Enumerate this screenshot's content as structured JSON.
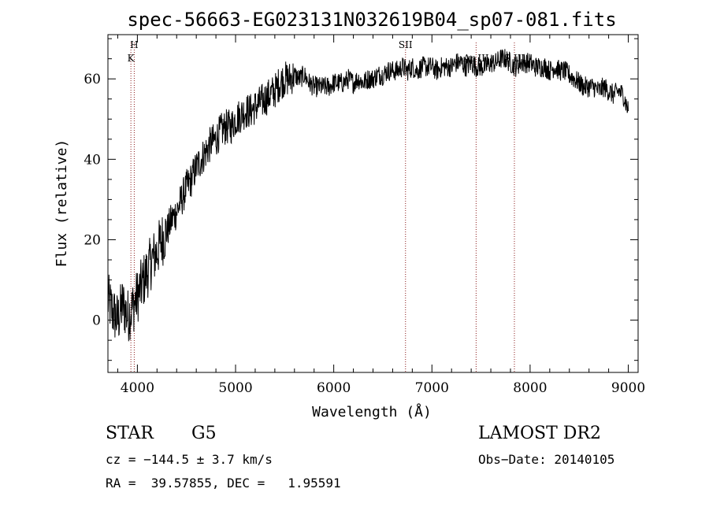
{
  "chart_data": {
    "type": "line",
    "title": "spec-56663-EG023131N032619B04_sp07-081.fits",
    "xlabel": "Wavelength (Å)",
    "ylabel": "Flux (relative)",
    "xlim": [
      3700,
      9100
    ],
    "ylim": [
      -13,
      71
    ],
    "xticks": [
      4000,
      5000,
      6000,
      7000,
      8000,
      9000
    ],
    "yticks": [
      0,
      20,
      40,
      60
    ],
    "grid": false,
    "series": [
      {
        "x": [
          3700,
          3750,
          3800,
          3850,
          3900,
          3950,
          4000,
          4050,
          4100,
          4150,
          4200,
          4250,
          4300,
          4350,
          4400,
          4450,
          4500,
          4550,
          4600,
          4650,
          4700,
          4750,
          4800,
          4850,
          4900,
          4950,
          5000,
          5050,
          5100,
          5150,
          5200,
          5250,
          5300,
          5350,
          5400,
          5450,
          5500,
          5550,
          5600,
          5650,
          5700,
          5750,
          5800,
          5850,
          5900,
          5950,
          6000,
          6050,
          6100,
          6150,
          6200,
          6250,
          6300,
          6350,
          6400,
          6450,
          6500,
          6550,
          6600,
          6650,
          6700,
          6750,
          6800,
          6850,
          6900,
          6950,
          7000,
          7050,
          7100,
          7150,
          7200,
          7250,
          7300,
          7350,
          7400,
          7450,
          7500,
          7550,
          7600,
          7650,
          7700,
          7750,
          7800,
          7850,
          7900,
          7950,
          8000,
          8050,
          8100,
          8150,
          8200,
          8250,
          8300,
          8350,
          8400,
          8450,
          8500,
          8550,
          8600,
          8650,
          8700,
          8750,
          8800,
          8850,
          8900,
          8950,
          9000
        ],
        "values": [
          5,
          2,
          0,
          4,
          1,
          3,
          6,
          9,
          12,
          15,
          17,
          20,
          22,
          25,
          27,
          30,
          33,
          35,
          38,
          40,
          42,
          44,
          45,
          47,
          48,
          48,
          50,
          51,
          52,
          52,
          53,
          54,
          55,
          56,
          57,
          59,
          60,
          60,
          61,
          60,
          61,
          59,
          58,
          58,
          58,
          58,
          59,
          59,
          59,
          60,
          59,
          60,
          59,
          60,
          60,
          61,
          61,
          62,
          62,
          62,
          63,
          62,
          63,
          62,
          63,
          63,
          63,
          62,
          63,
          63,
          63,
          64,
          64,
          63,
          64,
          63,
          63,
          63,
          64,
          64,
          65,
          65,
          64,
          63,
          64,
          64,
          64,
          63,
          63,
          63,
          62,
          63,
          62,
          62,
          61,
          60,
          59,
          58,
          58,
          58,
          57,
          58,
          57,
          56,
          57,
          56,
          52
        ]
      }
    ],
    "lines": [
      {
        "x": 3934,
        "label": "K",
        "label_row": 2
      },
      {
        "x": 3968,
        "label": "H",
        "label_row": 1
      },
      {
        "x": 6731,
        "label": "SII",
        "label_row": 1
      },
      {
        "x": 7450,
        "label": "Ar III",
        "label_row": 2
      },
      {
        "x": 7840,
        "label": "S III",
        "label_row": 2
      }
    ]
  },
  "info": {
    "class": "STAR",
    "subclass": "G5",
    "survey": "LAMOST DR2",
    "cz": "cz = −144.5 ± 3.7 km/s",
    "obs_date": "Obs−Date: 20140105",
    "coords": "RA =  39.57855, DEC =   1.95591"
  }
}
